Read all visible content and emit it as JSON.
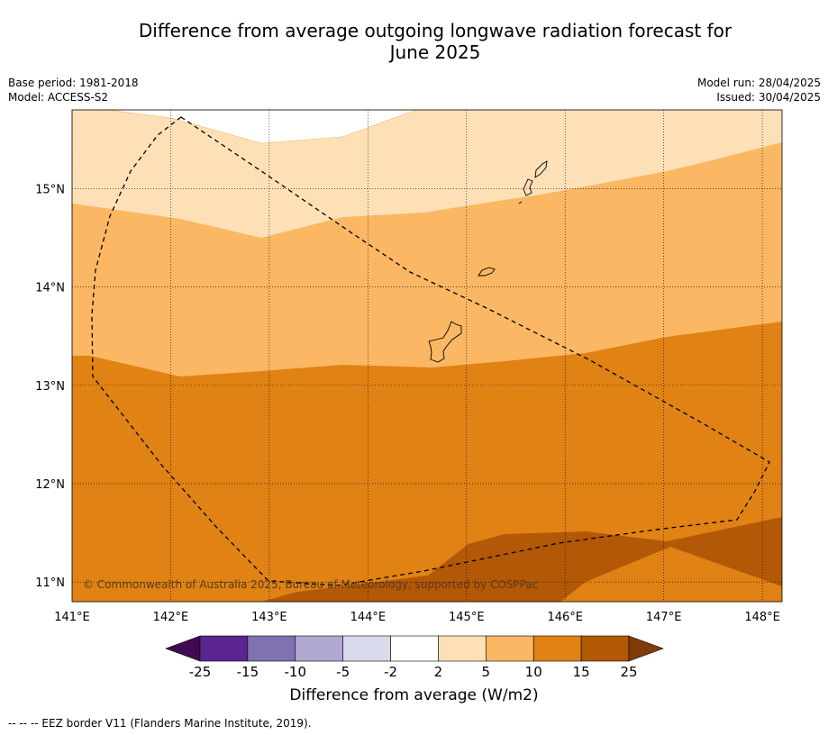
{
  "title_line1": "Difference from average outgoing longwave radiation forecast for",
  "title_line2": "June 2025",
  "base_period": "Base period: 1981-2018",
  "model": "Model: ACCESS-S2",
  "model_run": "Model run: 28/04/2025",
  "issued": "Issued: 30/04/2025",
  "map": {
    "lon_ticks": [
      "141°E",
      "142°E",
      "143°E",
      "144°E",
      "145°E",
      "146°E",
      "147°E",
      "148°E"
    ],
    "lat_ticks": [
      "15°N",
      "14°N",
      "13°N",
      "12°N",
      "11°N"
    ],
    "lon_range": [
      141,
      148.2
    ],
    "lat_range": [
      10.8,
      15.8
    ],
    "copyright": "© Commonwealth of Australia 2025, Bureau of Meteorology, supported by COSPPac"
  },
  "colorbar": {
    "title": "Difference from average (W/m2)",
    "labels": [
      "-25",
      "-15",
      "-10",
      "-5",
      "-2",
      "2",
      "5",
      "10",
      "15",
      "25"
    ],
    "colors": {
      "lt_-25": "#3f0a52",
      "-25_-15": "#5a2590",
      "-15_-10": "#8072b0",
      "-10_-5": "#b1a9d2",
      "-5_-2": "#d9daec",
      "-2_2": "#ffffff",
      "2_5": "#fde0b6",
      "5_10": "#fbb763",
      "10_15": "#e08214",
      "15_25": "#b35806",
      "gt_25": "#7f3b08"
    }
  },
  "footer": "--  --  -- EEZ border V11 (Flanders Marine Institute, 2019)."
}
